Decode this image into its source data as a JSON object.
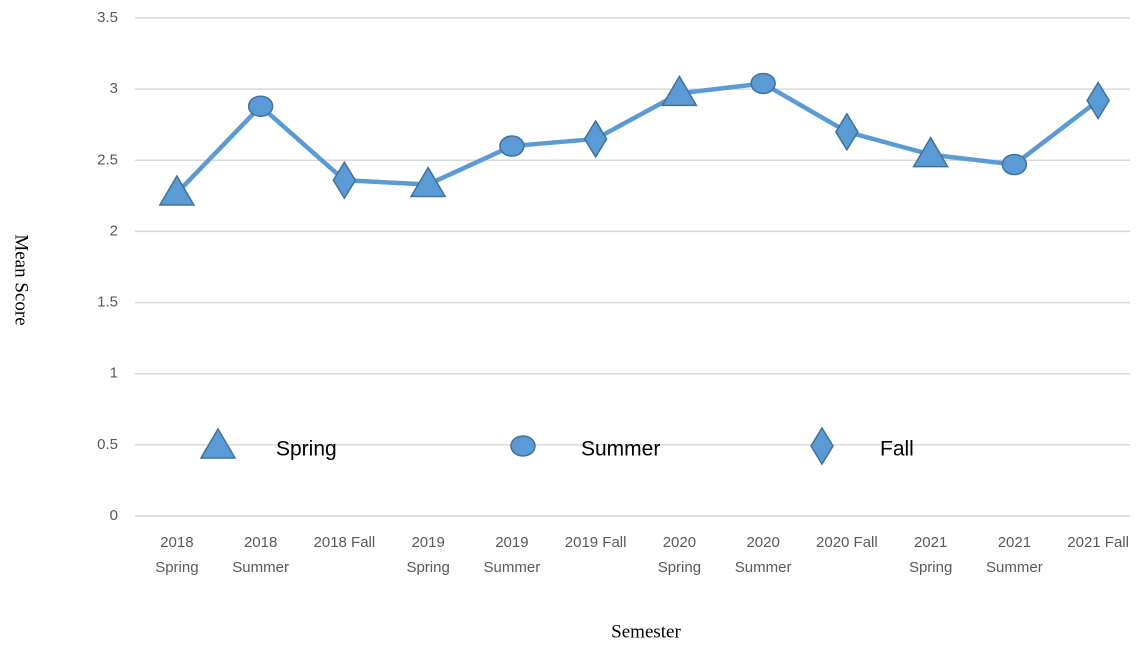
{
  "chart_data": {
    "type": "line",
    "x_label": "Semester",
    "y_label": "Mean Score",
    "categories": [
      "2018 Spring",
      "2018 Summer",
      "2018 Fall",
      "2019 Spring",
      "2019 Summer",
      "2019 Fall",
      "2020 Spring",
      "2020 Summer",
      "2020 Fall",
      "2021 Spring",
      "2021 Summer",
      "2021 Fall"
    ],
    "values": [
      2.27,
      2.88,
      2.36,
      2.33,
      2.6,
      2.65,
      2.97,
      3.04,
      2.7,
      2.54,
      2.47,
      2.92
    ],
    "markers": [
      "triangle",
      "circle",
      "diamond",
      "triangle",
      "circle",
      "diamond",
      "triangle",
      "circle",
      "diamond",
      "triangle",
      "circle",
      "diamond"
    ],
    "color": "#5b9bd5",
    "legend": [
      {
        "name": "Spring",
        "marker": "triangle"
      },
      {
        "name": "Summer",
        "marker": "circle"
      },
      {
        "name": "Fall",
        "marker": "diamond"
      }
    ],
    "ylim": [
      0,
      3.5
    ],
    "yticks": [
      0,
      0.5,
      1,
      1.5,
      2,
      2.5,
      3,
      3.5
    ],
    "grid": true
  }
}
